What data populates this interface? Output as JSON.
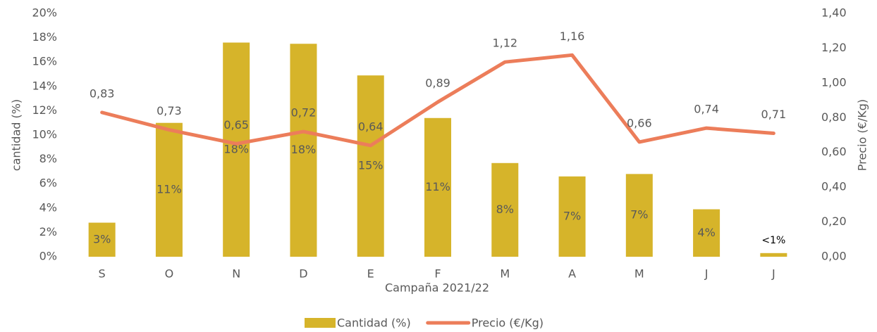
{
  "chart_data": {
    "type": "combo",
    "x_label": "Campaña 2021/22",
    "y_label": "cantidad (%)",
    "y2_label": "Precio (€/Kg)",
    "categories": [
      "S",
      "O",
      "N",
      "D",
      "E",
      "F",
      "M",
      "A",
      "M",
      "J",
      "J"
    ],
    "series": [
      {
        "name": "Cantidad (%)",
        "type": "bar",
        "color": "#d6b42a",
        "values": [
          2.8,
          11,
          17.6,
          17.5,
          14.9,
          11.4,
          7.7,
          6.6,
          6.8,
          3.9,
          0.3
        ],
        "value_labels": [
          "3%",
          "11%",
          "18%",
          "18%",
          "15%",
          "11%",
          "8%",
          "7%",
          "7%",
          "4%",
          "<1%"
        ]
      },
      {
        "name": "Precio (€/Kg)",
        "type": "line",
        "axis": "y2",
        "color": "#ec7d5a",
        "values": [
          0.83,
          0.73,
          0.65,
          0.72,
          0.64,
          0.89,
          1.12,
          1.16,
          0.66,
          0.74,
          0.71
        ],
        "value_labels": [
          "0,83",
          "0,73",
          "0,65",
          "0,72",
          "0,64",
          "0,89",
          "1,12",
          "1,16",
          "0,66",
          "0,74",
          "0,71"
        ]
      }
    ],
    "ylim": [
      0,
      20
    ],
    "yticks": [
      {
        "value": 0,
        "label": "0%"
      },
      {
        "value": 2,
        "label": "2%"
      },
      {
        "value": 4,
        "label": "4%"
      },
      {
        "value": 6,
        "label": "6%"
      },
      {
        "value": 8,
        "label": "8%"
      },
      {
        "value": 10,
        "label": "10%"
      },
      {
        "value": 12,
        "label": "12%"
      },
      {
        "value": 14,
        "label": "14%"
      },
      {
        "value": 16,
        "label": "16%"
      },
      {
        "value": 18,
        "label": "18%"
      },
      {
        "value": 20,
        "label": "20%"
      }
    ],
    "y2lim": [
      0,
      1.4
    ],
    "y2ticks": [
      {
        "value": 0,
        "label": "0,00"
      },
      {
        "value": 0.2,
        "label": "0,20"
      },
      {
        "value": 0.4,
        "label": "0,40"
      },
      {
        "value": 0.6,
        "label": "0,60"
      },
      {
        "value": 0.8,
        "label": "0,80"
      },
      {
        "value": 1,
        "label": "1,00"
      },
      {
        "value": 1.2,
        "label": "1,20"
      },
      {
        "value": 1.4,
        "label": "1,40"
      }
    ],
    "grid": false,
    "legend": "bottom"
  }
}
